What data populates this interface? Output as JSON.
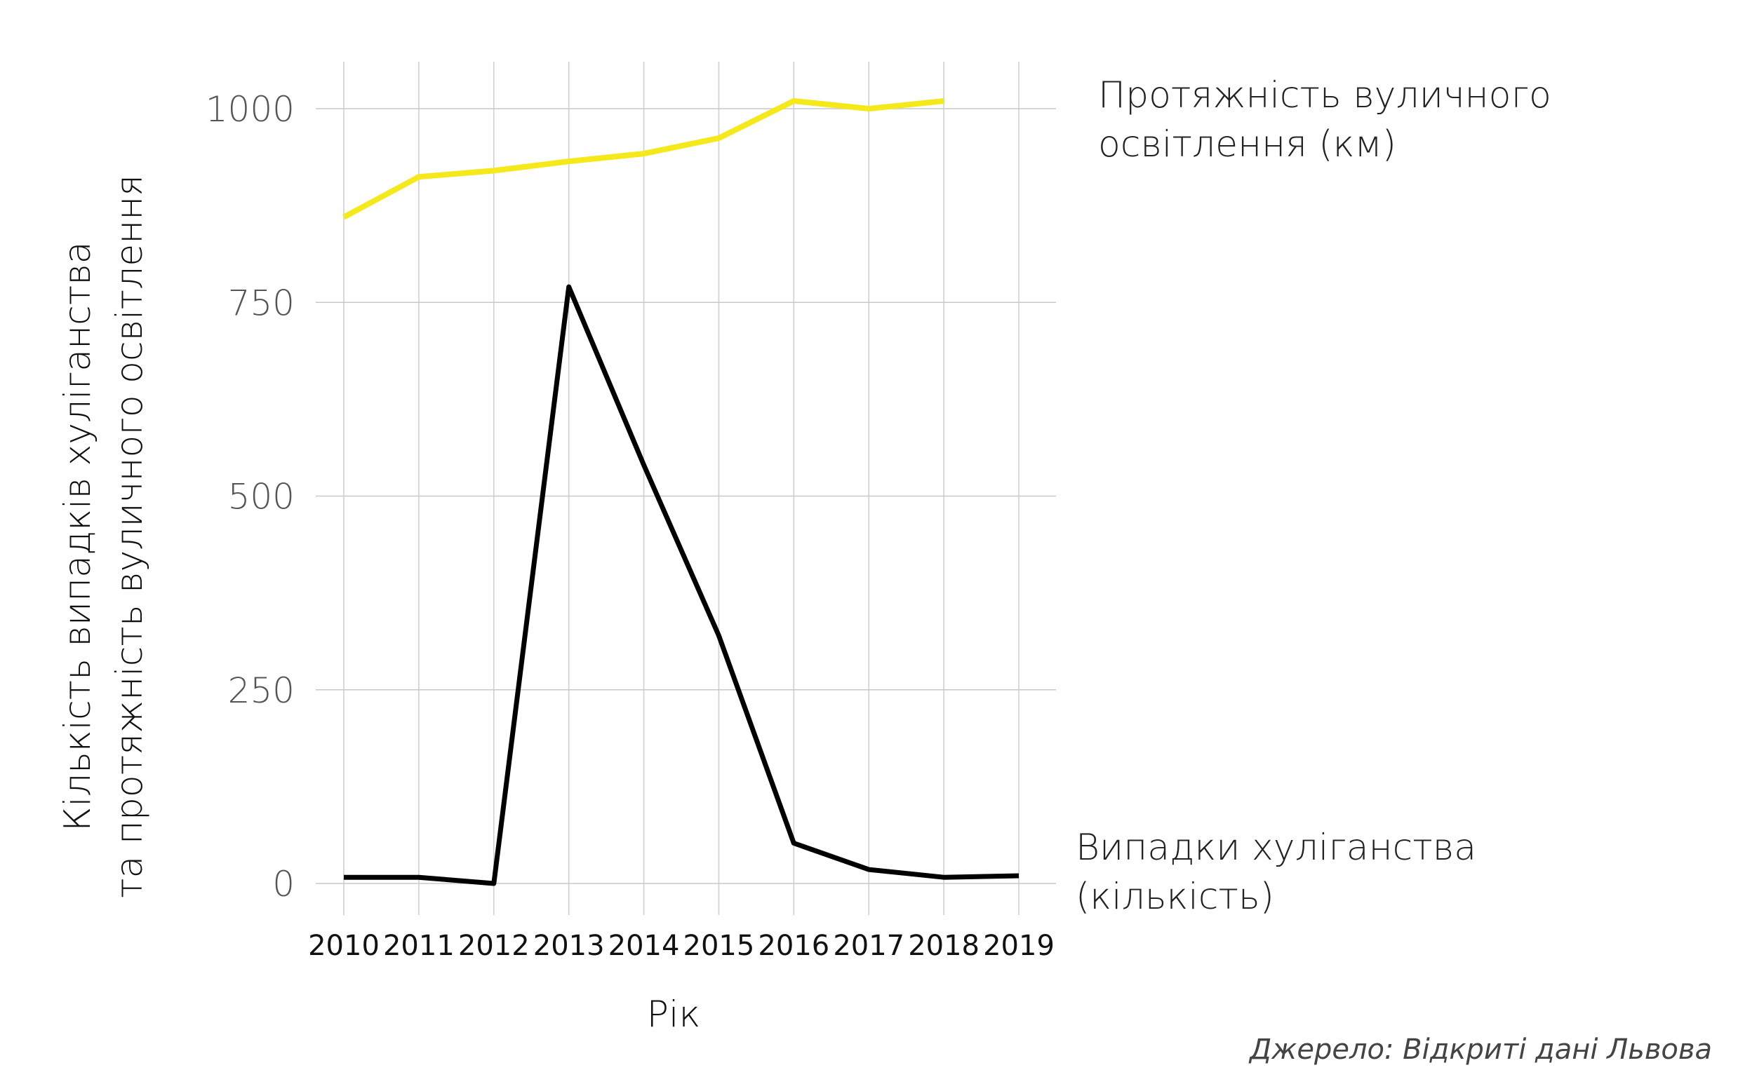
{
  "chart_data": {
    "type": "line",
    "categories": [
      2010,
      2011,
      2012,
      2013,
      2014,
      2015,
      2016,
      2017,
      2018,
      2019
    ],
    "xlabel": "Рік",
    "ylabel_line1": "Кількість випадків хуліганства",
    "ylabel_line2": "та протяжність вуличного освітлення",
    "ylim": [
      0,
      1000
    ],
    "yticks": [
      0,
      250,
      500,
      750,
      1000
    ],
    "grid": true,
    "series": [
      {
        "name_line1": "Протяжність вуличного",
        "name_line2": "освітлення (км)",
        "color": "#f5e91c",
        "values": [
          860,
          912,
          920,
          932,
          942,
          962,
          1010,
          1000,
          1010,
          null
        ]
      },
      {
        "name_line1": "Випадки хуліганства",
        "name_line2": "(кількість)",
        "color": "#000000",
        "values": [
          8,
          8,
          0,
          770,
          540,
          320,
          52,
          18,
          8,
          10
        ]
      }
    ],
    "source": "Джерело: Відкриті дані Львова"
  }
}
